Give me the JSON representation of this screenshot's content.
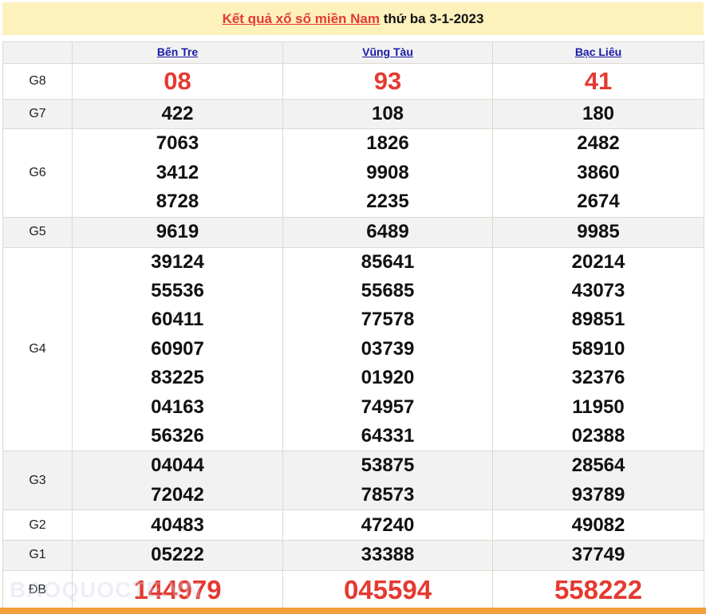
{
  "header": {
    "title_link": "Kết quả xổ số miền Nam",
    "title_rest": " thứ ba 3-1-2023"
  },
  "provinces": [
    "Bến Tre",
    "Vũng Tàu",
    "Bạc Liêu"
  ],
  "prizes": [
    {
      "label": "G8",
      "values": [
        [
          "08"
        ],
        [
          "93"
        ],
        [
          "41"
        ]
      ]
    },
    {
      "label": "G7",
      "values": [
        [
          "422"
        ],
        [
          "108"
        ],
        [
          "180"
        ]
      ]
    },
    {
      "label": "G6",
      "values": [
        [
          "7063",
          "3412",
          "8728"
        ],
        [
          "1826",
          "9908",
          "2235"
        ],
        [
          "2482",
          "3860",
          "2674"
        ]
      ]
    },
    {
      "label": "G5",
      "values": [
        [
          "9619"
        ],
        [
          "6489"
        ],
        [
          "9985"
        ]
      ]
    },
    {
      "label": "G4",
      "values": [
        [
          "39124",
          "55536",
          "60411",
          "60907",
          "83225",
          "04163",
          "56326"
        ],
        [
          "85641",
          "55685",
          "77578",
          "03739",
          "01920",
          "74957",
          "64331"
        ],
        [
          "20214",
          "43073",
          "89851",
          "58910",
          "32376",
          "11950",
          "02388"
        ]
      ]
    },
    {
      "label": "G3",
      "values": [
        [
          "04044",
          "72042"
        ],
        [
          "53875",
          "78573"
        ],
        [
          "28564",
          "93789"
        ]
      ]
    },
    {
      "label": "G2",
      "values": [
        [
          "40483"
        ],
        [
          "47240"
        ],
        [
          "49082"
        ]
      ]
    },
    {
      "label": "G1",
      "values": [
        [
          "05222"
        ],
        [
          "33388"
        ],
        [
          "37749"
        ]
      ]
    },
    {
      "label": "ĐB",
      "values": [
        [
          "144979"
        ],
        [
          "045594"
        ],
        [
          "558222"
        ]
      ]
    }
  ],
  "watermark": "BAOQUOCTE.VN",
  "colors": {
    "accent_red": "#e43a31",
    "title_bg": "#fdf1bc",
    "bottom_bar": "#f29e3b",
    "link": "#1a1aa6"
  }
}
